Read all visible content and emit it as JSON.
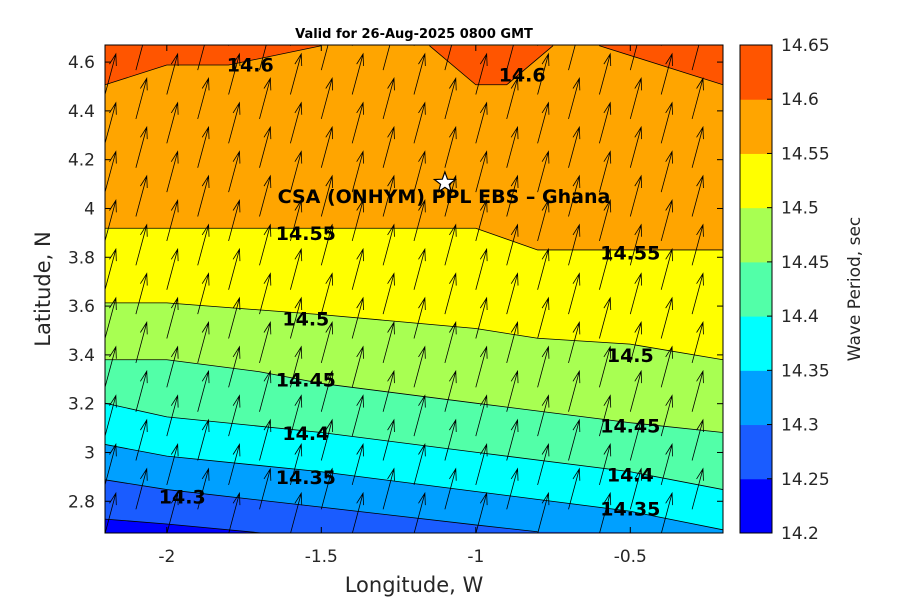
{
  "title": "Valid for 26-Aug-2025 0800 GMT",
  "chart_data": {
    "type": "heatmap",
    "subtype": "filled-contour",
    "title": "Valid for 26-Aug-2025 0800 GMT",
    "xlabel": "Longitude, W",
    "ylabel": "Latitude, N",
    "xlim": [
      -2.2,
      -0.2
    ],
    "ylim": [
      2.67,
      4.67
    ],
    "x_ticks": [
      -2,
      -1.5,
      -1,
      -0.5
    ],
    "x_tick_labels": [
      "-2",
      "-1.5",
      "-1",
      "-0.5"
    ],
    "y_ticks": [
      2.8,
      3.0,
      3.2,
      3.4,
      3.6,
      3.8,
      4.0,
      4.2,
      4.4,
      4.6
    ],
    "y_tick_labels": [
      "2.8",
      "3",
      "3.2",
      "3.4",
      "3.6",
      "3.8",
      "4",
      "4.2",
      "4.4",
      "4.6"
    ],
    "colorbar": {
      "label": "Wave Period, sec",
      "levels": [
        14.2,
        14.25,
        14.3,
        14.35,
        14.4,
        14.45,
        14.5,
        14.55,
        14.6,
        14.65
      ],
      "tick_labels": [
        "14.2",
        "14.25",
        "14.3",
        "14.35",
        "14.4",
        "14.45",
        "14.5",
        "14.55",
        "14.6",
        "14.65"
      ],
      "colors": [
        "#0000ff",
        "#1a5cff",
        "#00a0ff",
        "#00ffff",
        "#52ffa8",
        "#a8ff52",
        "#ffff00",
        "#ffa500",
        "#ff5500"
      ]
    },
    "contours": [
      {
        "level": 14.25,
        "points": [
          [
            -2.2,
            2.727
          ],
          [
            -2.0,
            2.707
          ],
          [
            -1.7,
            2.671
          ],
          [
            -1.5,
            2.647
          ]
        ]
      },
      {
        "level": 14.3,
        "points": [
          [
            -2.2,
            2.888
          ],
          [
            -2.0,
            2.848
          ],
          [
            -1.5,
            2.776
          ],
          [
            -1.0,
            2.703
          ],
          [
            -0.8,
            2.675
          ]
        ]
      },
      {
        "level": 14.35,
        "points": [
          [
            -2.2,
            3.033
          ],
          [
            -2.0,
            2.985
          ],
          [
            -1.5,
            2.921
          ],
          [
            -1.0,
            2.84
          ],
          [
            -0.5,
            2.759
          ],
          [
            -0.2,
            2.683
          ]
        ]
      },
      {
        "level": 14.4,
        "points": [
          [
            -2.2,
            3.202
          ],
          [
            -2.0,
            3.146
          ],
          [
            -1.5,
            3.082
          ],
          [
            -1.0,
            3.001
          ],
          [
            -0.5,
            2.921
          ],
          [
            -0.2,
            2.848
          ]
        ]
      },
      {
        "level": 14.45,
        "points": [
          [
            -2.2,
            3.38
          ],
          [
            -2.0,
            3.38
          ],
          [
            -1.7,
            3.331
          ],
          [
            -1.5,
            3.283
          ],
          [
            -1.0,
            3.202
          ],
          [
            -0.5,
            3.122
          ],
          [
            -0.2,
            3.082
          ]
        ]
      },
      {
        "level": 14.5,
        "points": [
          [
            -2.2,
            3.613
          ],
          [
            -2.0,
            3.613
          ],
          [
            -1.5,
            3.565
          ],
          [
            -1.0,
            3.508
          ],
          [
            -0.8,
            3.468
          ],
          [
            -0.5,
            3.444
          ],
          [
            -0.2,
            3.38
          ]
        ]
      },
      {
        "level": 14.55,
        "points": [
          [
            -2.2,
            3.919
          ],
          [
            -1.0,
            3.919
          ],
          [
            -0.8,
            3.83
          ],
          [
            -0.2,
            3.83
          ]
        ]
      },
      {
        "level": 14.6,
        "points": [
          [
            -2.2,
            4.507
          ],
          [
            -2.0,
            4.588
          ],
          [
            -1.8,
            4.588
          ],
          [
            -1.5,
            4.667
          ]
        ],
        "closed": false
      },
      {
        "level": 14.6,
        "points": [
          [
            -1.15,
            4.667
          ],
          [
            -1.0,
            4.507
          ],
          [
            -0.9,
            4.507
          ],
          [
            -0.75,
            4.667
          ]
        ]
      },
      {
        "level": 14.6,
        "points": [
          [
            -0.6,
            4.667
          ],
          [
            -0.2,
            4.507
          ]
        ]
      }
    ],
    "contour_labels": [
      {
        "text": "14.6",
        "x": -1.73,
        "y": 4.59
      },
      {
        "text": "14.6",
        "x": -0.85,
        "y": 4.55
      },
      {
        "text": "14.55",
        "x": -1.55,
        "y": 3.9
      },
      {
        "text": "14.55",
        "x": -0.5,
        "y": 3.82
      },
      {
        "text": "14.5",
        "x": -1.55,
        "y": 3.55
      },
      {
        "text": "14.5",
        "x": -0.5,
        "y": 3.4
      },
      {
        "text": "14.45",
        "x": -1.55,
        "y": 3.3
      },
      {
        "text": "14.45",
        "x": -0.5,
        "y": 3.11
      },
      {
        "text": "14.4",
        "x": -1.55,
        "y": 3.08
      },
      {
        "text": "14.4",
        "x": -0.5,
        "y": 2.91
      },
      {
        "text": "14.35",
        "x": -1.55,
        "y": 2.9
      },
      {
        "text": "14.35",
        "x": -0.5,
        "y": 2.77
      },
      {
        "text": "14.3",
        "x": -1.95,
        "y": 2.82
      }
    ],
    "vectors": {
      "x": [
        -2.2,
        -2.1,
        -2.0,
        -1.9,
        -1.8,
        -1.7,
        -1.6,
        -1.5,
        -1.4,
        -1.3,
        -1.2,
        -1.1,
        -1.0,
        -0.9,
        -0.8,
        -0.7,
        -0.6,
        -0.5,
        -0.4,
        -0.3,
        -0.2
      ],
      "y": [
        2.667,
        2.767,
        2.867,
        2.967,
        3.067,
        3.167,
        3.267,
        3.367,
        3.467,
        3.567,
        3.667,
        3.767,
        3.867,
        3.967,
        4.067,
        4.167,
        4.267,
        4.367,
        4.467,
        4.567,
        4.667
      ],
      "direction": "toward NNE"
    },
    "marker": {
      "name": "CSA (ONHYM) PPL EBS  – Ghana",
      "x": -1.1,
      "y": 4.105,
      "symbol": "star"
    }
  }
}
